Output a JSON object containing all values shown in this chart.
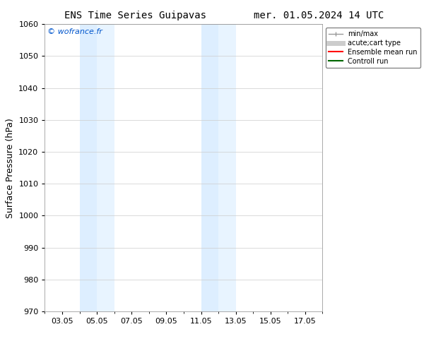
{
  "title_left": "ENS Time Series Guipavas",
  "title_right": "mer. 01.05.2024 14 UTC",
  "ylabel": "Surface Pressure (hPa)",
  "ylim": [
    970,
    1060
  ],
  "yticks": [
    970,
    980,
    990,
    1000,
    1010,
    1020,
    1030,
    1040,
    1050,
    1060
  ],
  "xtick_labels": [
    "03.05",
    "05.05",
    "07.05",
    "09.05",
    "11.05",
    "13.05",
    "15.05",
    "17.05"
  ],
  "shaded_bands": [
    {
      "xmin": 4.0,
      "xmax": 5.0
    },
    {
      "xmin": 5.0,
      "xmax": 6.0
    },
    {
      "xmin": 11.0,
      "xmax": 12.0
    },
    {
      "xmin": 12.0,
      "xmax": 13.0
    }
  ],
  "shaded_colors": [
    "#ddeeff",
    "#e8f4ff",
    "#ddeeff",
    "#e8f4ff"
  ],
  "background_color": "#ffffff",
  "copyright_text": "© wofrance.fr",
  "copyright_color": "#0055cc",
  "legend_entries": [
    {
      "label": "min/max",
      "color": "#999999",
      "lw": 1,
      "ls": "-"
    },
    {
      "label": "acute;cart type",
      "color": "#cccccc",
      "lw": 5,
      "ls": "-"
    },
    {
      "label": "Ensemble mean run",
      "color": "#ff0000",
      "lw": 1.5,
      "ls": "-"
    },
    {
      "label": "Controll run",
      "color": "#006600",
      "lw": 1.5,
      "ls": "-"
    }
  ],
  "title_fontsize": 10,
  "tick_fontsize": 8,
  "ylabel_fontsize": 9,
  "xlim": [
    2.0,
    18.0
  ],
  "xtick_positions": [
    3,
    5,
    7,
    9,
    11,
    13,
    15,
    17
  ]
}
